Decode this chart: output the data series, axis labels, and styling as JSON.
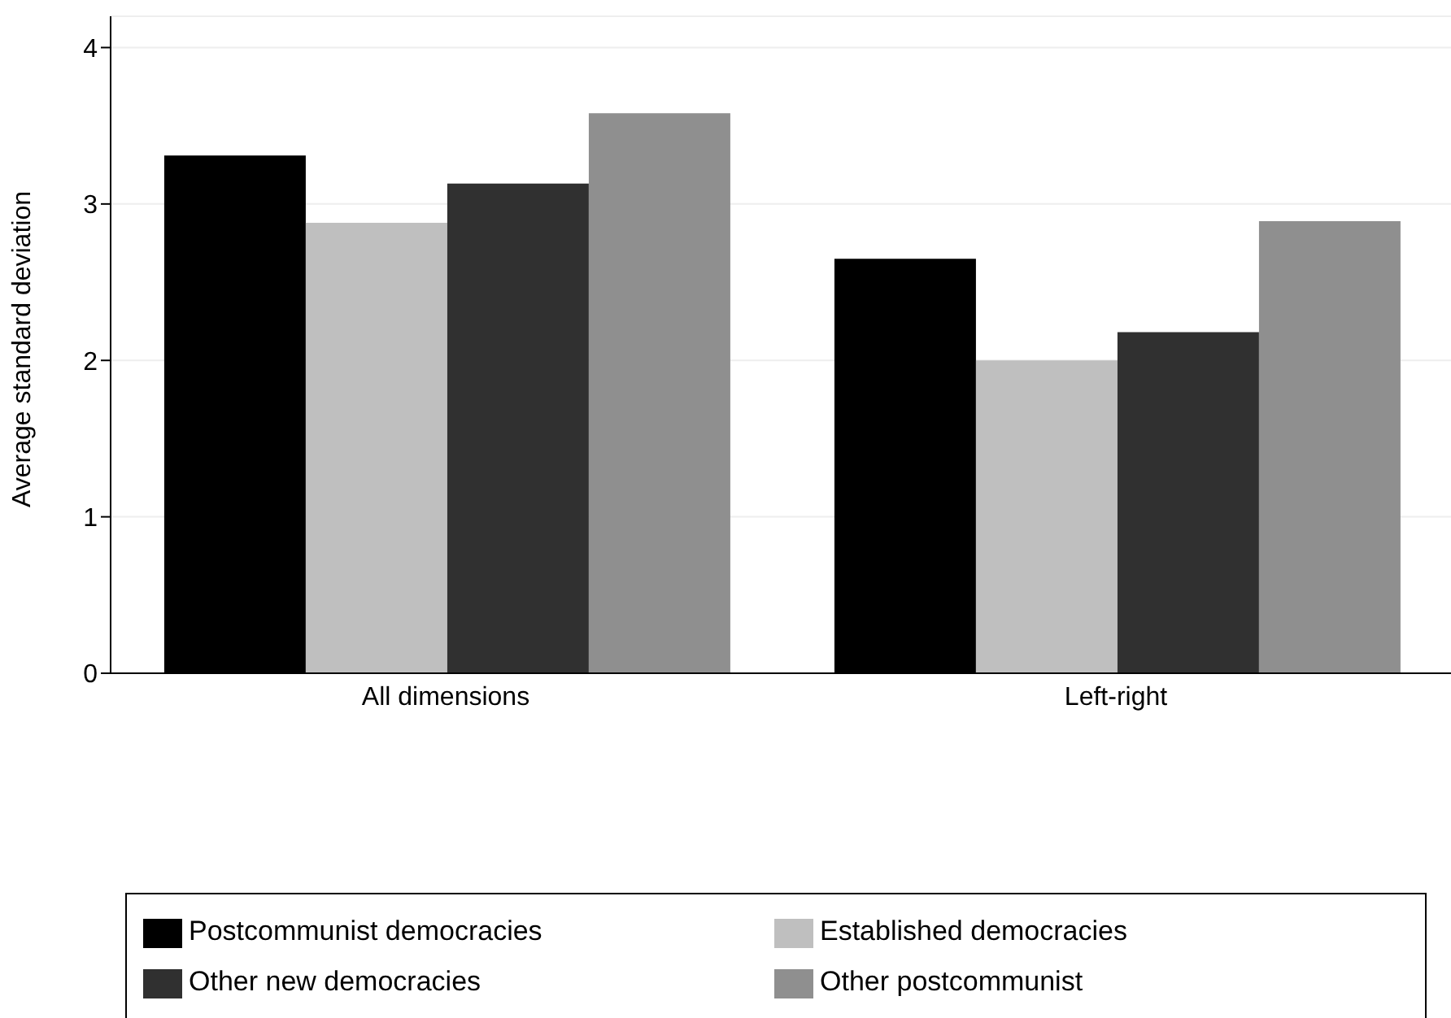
{
  "chart_data": {
    "type": "bar",
    "ylabel": "Average standard deviation",
    "categories": [
      "All dimensions",
      "Left-right"
    ],
    "series": [
      {
        "name": "Postcommunist democracies",
        "color": "#000000",
        "values": [
          3.31,
          2.65
        ]
      },
      {
        "name": "Established democracies",
        "color": "#bfbfbf",
        "values": [
          2.88,
          2.0
        ]
      },
      {
        "name": "Other new democracies",
        "color": "#303030",
        "values": [
          3.13,
          2.18
        ]
      },
      {
        "name": "Other postcommunist",
        "color": "#8f8f8f",
        "values": [
          3.58,
          2.89
        ]
      }
    ],
    "ylim": [
      0,
      4.2
    ],
    "yticks": [
      0,
      1,
      2,
      3,
      4
    ],
    "grid": "y",
    "legend": "bottom"
  }
}
